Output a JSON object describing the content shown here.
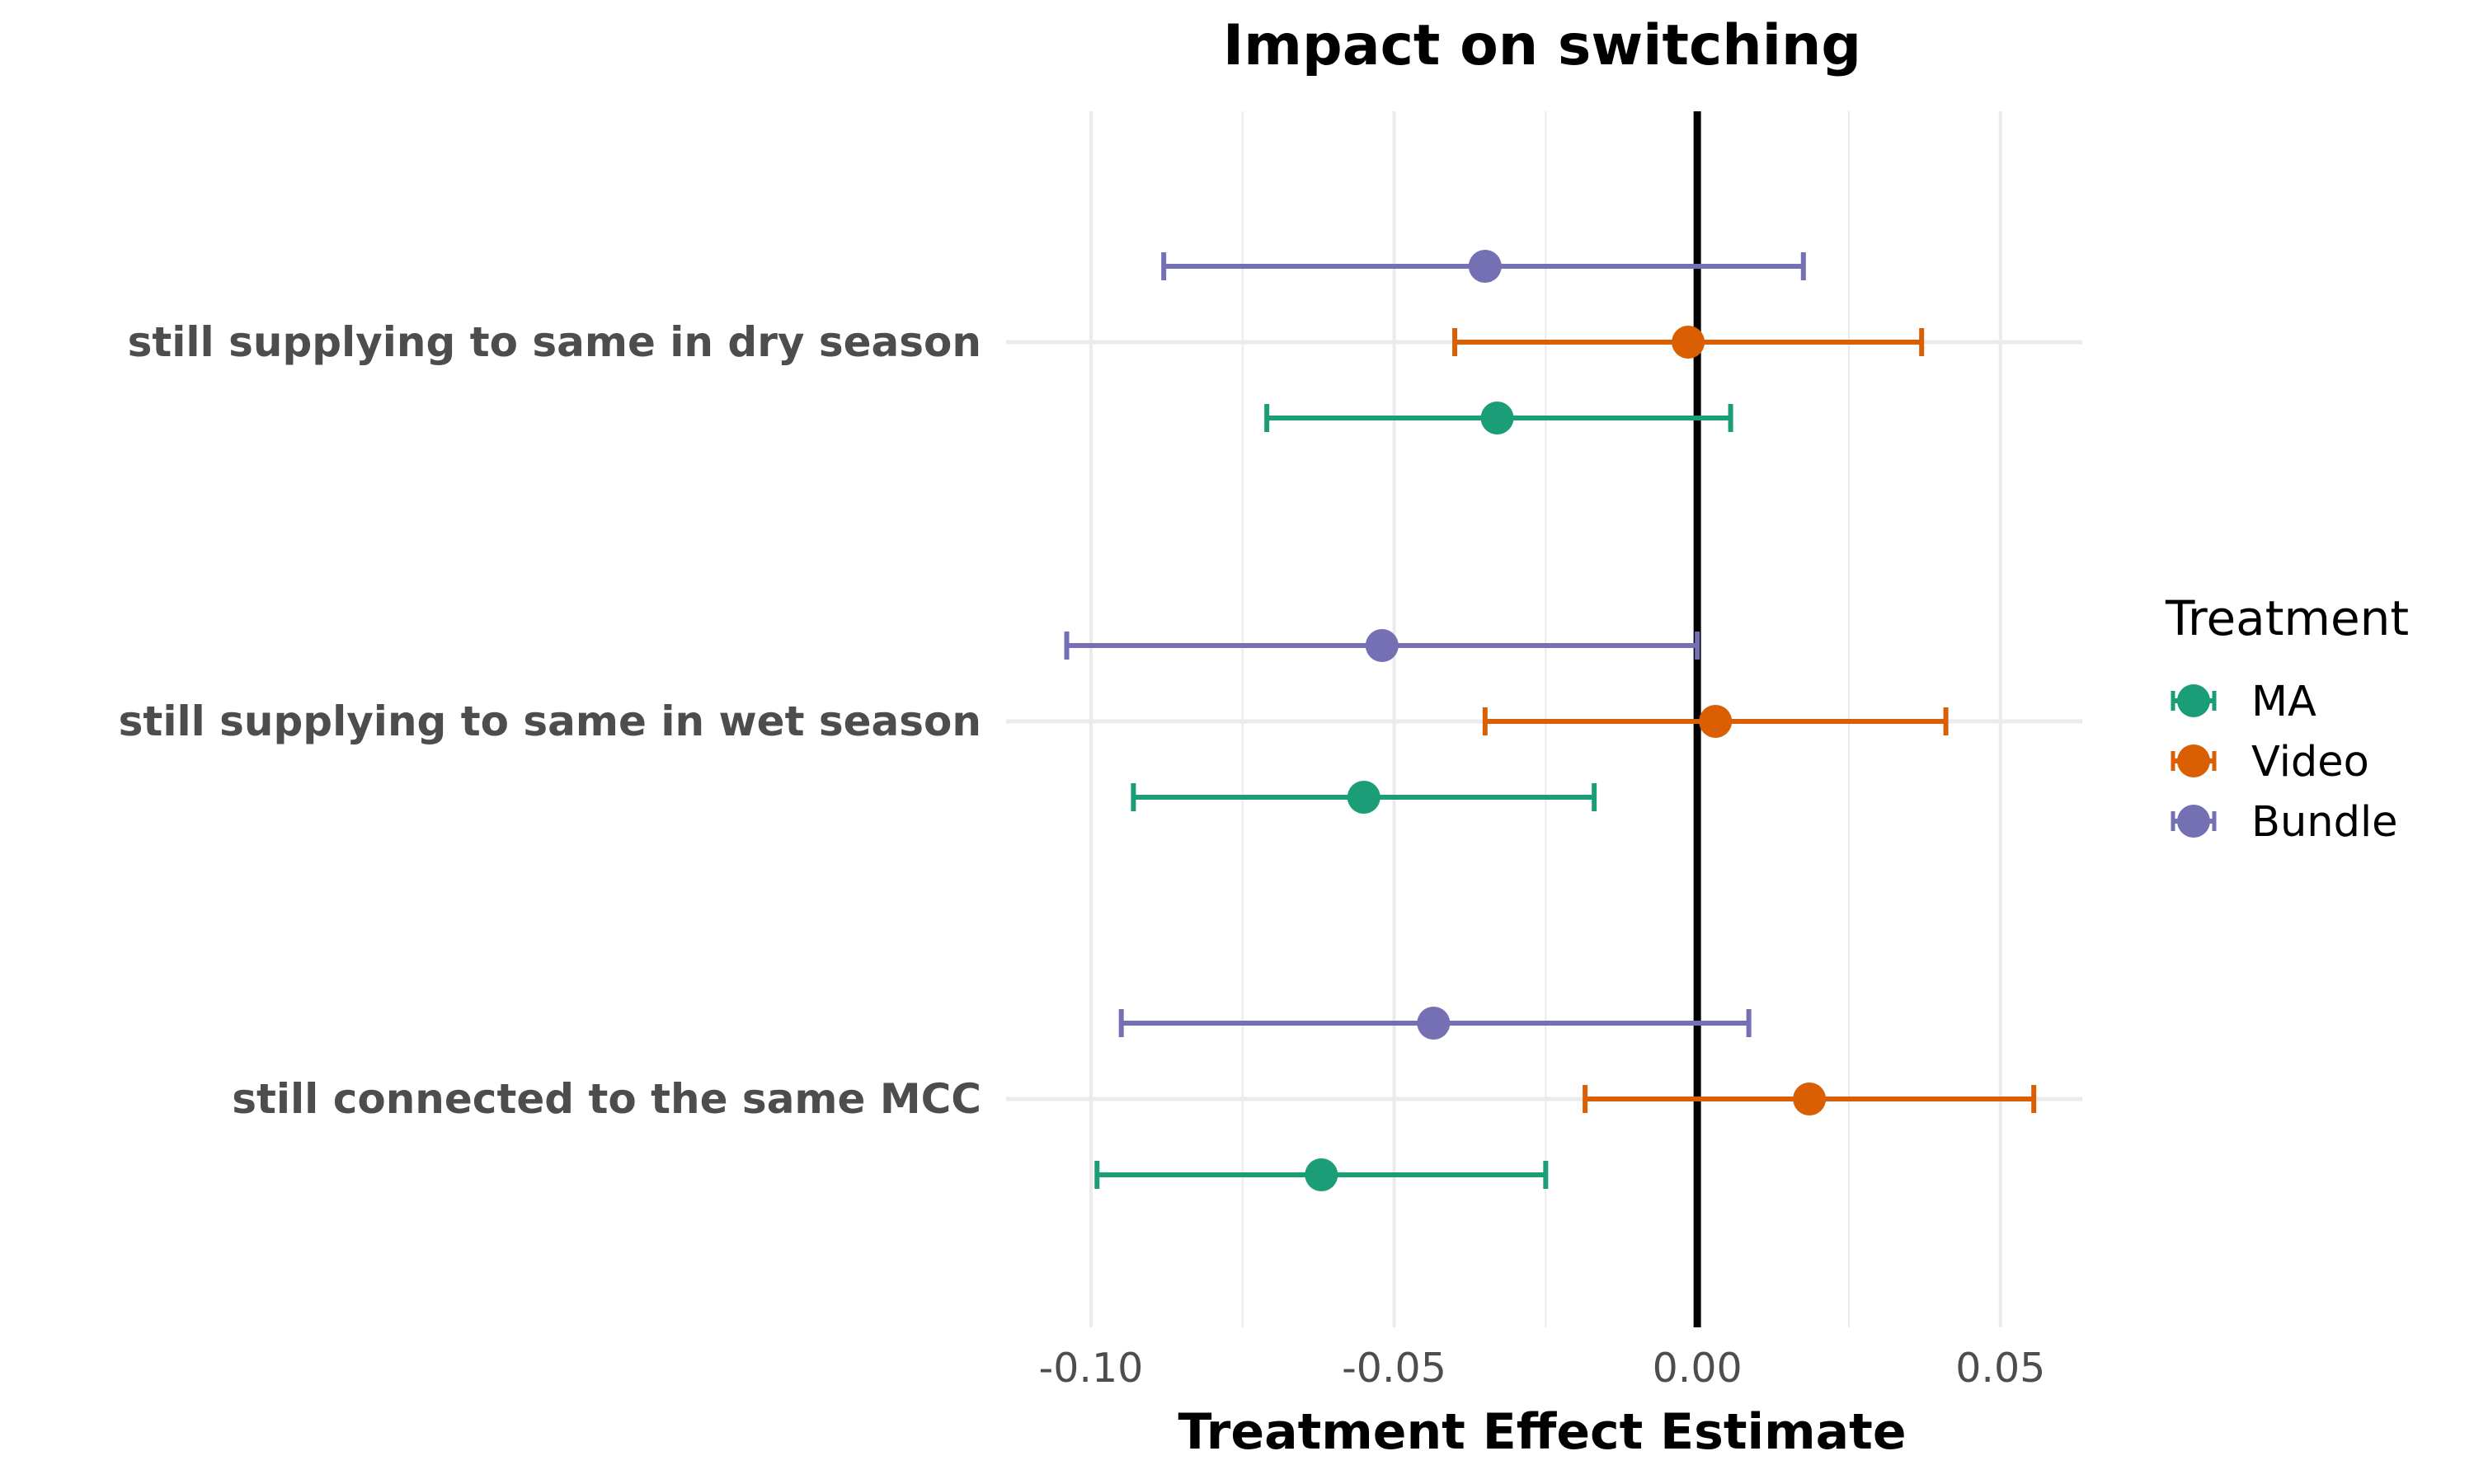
{
  "chart_data": {
    "type": "forest",
    "title": "Impact on switching",
    "xlabel": "Treatment Effect Estimate",
    "ylabel": "",
    "xlim": [
      -0.114,
      0.0635
    ],
    "xticks": [
      -0.1,
      -0.05,
      0.0,
      0.05
    ],
    "xtick_labels": [
      "-0.10",
      "-0.05",
      "0.00",
      "0.05"
    ],
    "reference_line": 0,
    "grid": true,
    "legend": {
      "title": "Treatment",
      "position": "right",
      "items": [
        "MA",
        "Video",
        "Bundle"
      ]
    },
    "categories": [
      "still supplying to same in dry season",
      "still supplying to same in wet season",
      "still connected to the same MCC"
    ],
    "series": [
      {
        "name": "MA",
        "color": "#1b9e77",
        "estimates": [
          -0.033,
          -0.055,
          -0.062
        ],
        "ci_low": [
          -0.071,
          -0.093,
          -0.099
        ],
        "ci_high": [
          0.0055,
          -0.017,
          -0.025
        ]
      },
      {
        "name": "Video",
        "color": "#d95f02",
        "estimates": [
          -0.0015,
          0.003,
          0.0185
        ],
        "ci_low": [
          -0.04,
          -0.035,
          -0.0185
        ],
        "ci_high": [
          0.037,
          0.041,
          0.0555
        ]
      },
      {
        "name": "Bundle",
        "color": "#7570b3",
        "estimates": [
          -0.035,
          -0.052,
          -0.0435
        ],
        "ci_low": [
          -0.088,
          -0.104,
          -0.095
        ],
        "ci_high": [
          0.0175,
          0.0,
          0.0085
        ]
      }
    ]
  }
}
